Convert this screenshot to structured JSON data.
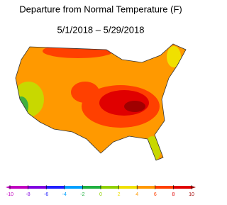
{
  "title": "Departure from Normal Temperature (F)",
  "subtitle": "5/1/2018 – 5/29/2018",
  "colorbar": {
    "ticks": [
      -10,
      -8,
      -6,
      -4,
      -2,
      0,
      2,
      4,
      6,
      8,
      10
    ],
    "colors": [
      "#c000c0",
      "#8000e0",
      "#2020ff",
      "#00a0ff",
      "#20b040",
      "#90d000",
      "#f0e000",
      "#ff9900",
      "#ff4000",
      "#e00000",
      "#a00000"
    ]
  }
}
